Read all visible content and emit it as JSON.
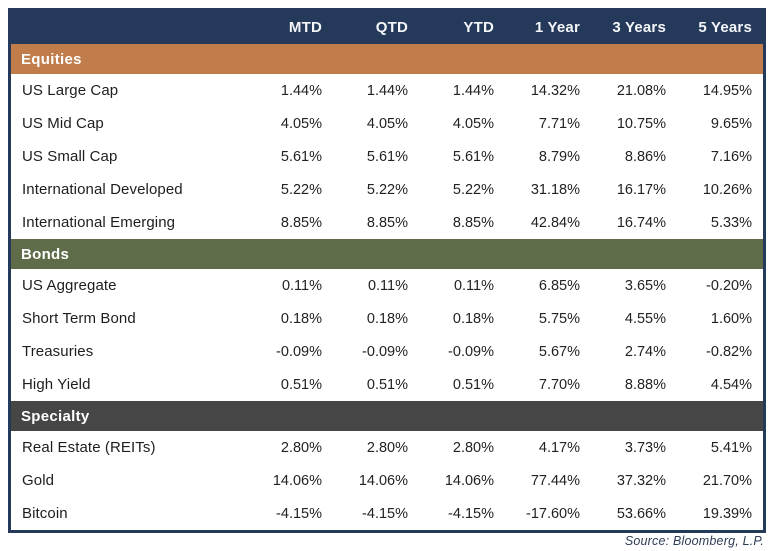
{
  "chart_data": {
    "type": "table",
    "columns": [
      "MTD",
      "QTD",
      "YTD",
      "1 Year",
      "3 Years",
      "5 Years"
    ],
    "sections": [
      {
        "label": "Equities",
        "color": "#C07C4B",
        "rows": [
          {
            "label": "US Large Cap",
            "values": [
              "1.44%",
              "1.44%",
              "1.44%",
              "14.32%",
              "21.08%",
              "14.95%"
            ]
          },
          {
            "label": "US Mid Cap",
            "values": [
              "4.05%",
              "4.05%",
              "4.05%",
              "7.71%",
              "10.75%",
              "9.65%"
            ]
          },
          {
            "label": "US Small Cap",
            "values": [
              "5.61%",
              "5.61%",
              "5.61%",
              "8.79%",
              "8.86%",
              "7.16%"
            ]
          },
          {
            "label": "International Developed",
            "values": [
              "5.22%",
              "5.22%",
              "5.22%",
              "31.18%",
              "16.17%",
              "10.26%"
            ]
          },
          {
            "label": "International Emerging",
            "values": [
              "8.85%",
              "8.85%",
              "8.85%",
              "42.84%",
              "16.74%",
              "5.33%"
            ]
          }
        ]
      },
      {
        "label": "Bonds",
        "color": "#5F6C49",
        "rows": [
          {
            "label": "US Aggregate",
            "values": [
              "0.11%",
              "0.11%",
              "0.11%",
              "6.85%",
              "3.65%",
              "-0.20%"
            ]
          },
          {
            "label": "Short Term Bond",
            "values": [
              "0.18%",
              "0.18%",
              "0.18%",
              "5.75%",
              "4.55%",
              "1.60%"
            ]
          },
          {
            "label": "Treasuries",
            "values": [
              "-0.09%",
              "-0.09%",
              "-0.09%",
              "5.67%",
              "2.74%",
              "-0.82%"
            ]
          },
          {
            "label": "High Yield",
            "values": [
              "0.51%",
              "0.51%",
              "0.51%",
              "7.70%",
              "8.88%",
              "4.54%"
            ]
          }
        ]
      },
      {
        "label": "Specialty",
        "color": "#464646",
        "rows": [
          {
            "label": "Real Estate (REITs)",
            "values": [
              "2.80%",
              "2.80%",
              "2.80%",
              "4.17%",
              "3.73%",
              "5.41%"
            ]
          },
          {
            "label": "Gold",
            "values": [
              "14.06%",
              "14.06%",
              "14.06%",
              "77.44%",
              "37.32%",
              "21.70%"
            ]
          },
          {
            "label": "Bitcoin",
            "values": [
              "-4.15%",
              "-4.15%",
              "-4.15%",
              "-17.60%",
              "53.66%",
              "19.39%"
            ]
          }
        ]
      }
    ],
    "source": "Source: Bloomberg, L.P.",
    "layout": {
      "header_background": "#25395B",
      "row_background": "#FFFFFF",
      "grid": false
    }
  },
  "colors": {
    "navy": "#25395B",
    "orange": "#C07C4B",
    "olive": "#5F6C49",
    "charcoal": "#464646",
    "header_text": "#F4F6F9",
    "body_text": "#222222",
    "source_text": "#2E3C54"
  }
}
